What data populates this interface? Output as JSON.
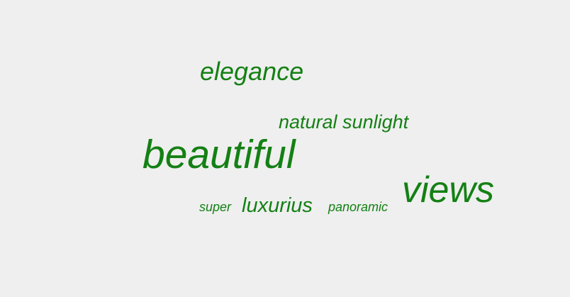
{
  "word_cloud": {
    "color": "#148014",
    "words": [
      {
        "text": "elegance"
      },
      {
        "text": "natural sunlight"
      },
      {
        "text": "beautiful"
      },
      {
        "text": "views"
      },
      {
        "text": "super"
      },
      {
        "text": "luxurius"
      },
      {
        "text": "panoramic"
      }
    ]
  }
}
